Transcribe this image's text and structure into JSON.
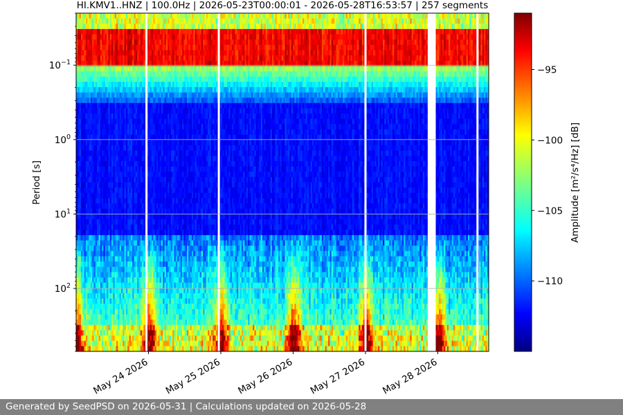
{
  "chart_data": {
    "type": "heatmap",
    "title": "HI.KMV1..HNZ | 100.0Hz | 2026-05-23T00:00:01 - 2026-05-28T16:53:57 | 257 segments",
    "ylabel": "Period [s]",
    "yscale": "log",
    "y_inverted": true,
    "ylim": [
      0.02,
      700
    ],
    "xlim": [
      "2026-05-23T00:00:01",
      "2026-05-28T16:53:57"
    ],
    "grid": true,
    "x_ticks": [
      {
        "date": "2026-05-24",
        "label": "May 24 2026"
      },
      {
        "date": "2026-05-25",
        "label": "May 25 2026"
      },
      {
        "date": "2026-05-26",
        "label": "May 26 2026"
      },
      {
        "date": "2026-05-27",
        "label": "May 27 2026"
      },
      {
        "date": "2026-05-28",
        "label": "May 28 2026"
      }
    ],
    "y_ticks": [
      {
        "value": 0.1,
        "base": "10",
        "exp": "−1"
      },
      {
        "value": 1,
        "base": "10",
        "exp": "0"
      },
      {
        "value": 10,
        "base": "10",
        "exp": "1"
      },
      {
        "value": 100,
        "base": "10",
        "exp": "2"
      }
    ],
    "colorbar": {
      "label": "Amplitude [m²/s⁴/Hz] [dB]",
      "range": [
        -115,
        -91
      ],
      "colormap": "jet",
      "ticks": [
        {
          "value": -95,
          "label": "−95"
        },
        {
          "value": -100,
          "label": "−100"
        },
        {
          "value": -105,
          "label": "−105"
        },
        {
          "value": -110,
          "label": "−110"
        }
      ]
    },
    "data_gaps": [
      [
        "2026-05-23T23:00:00",
        "2026-05-23T23:40:00"
      ],
      [
        "2026-05-24T23:00:00",
        "2026-05-24T23:40:00"
      ],
      [
        "2026-05-26T23:40:00",
        "2026-05-27T00:20:00"
      ],
      [
        "2026-05-27T20:40:00",
        "2026-05-27T23:20:00"
      ],
      [
        "2026-05-28T12:50:00",
        "2026-05-28T13:20:00"
      ]
    ]
  },
  "footer": {
    "text": "Generated by SeedPSD on 2026-05-31 | Calculations updated on 2026-05-28"
  }
}
